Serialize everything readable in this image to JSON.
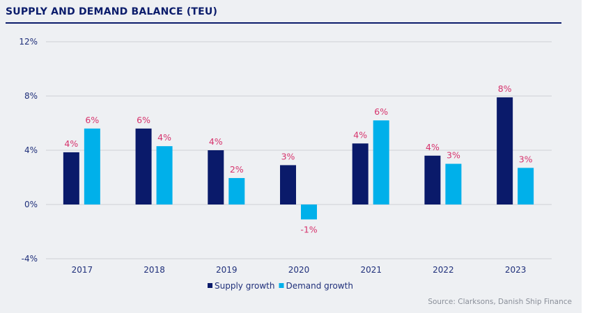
{
  "chart_data": {
    "type": "bar",
    "title": "SUPPLY AND DEMAND BALANCE (TEU)",
    "categories": [
      "2017",
      "2018",
      "2019",
      "2020",
      "2021",
      "2022",
      "2023"
    ],
    "series": [
      {
        "name": "Supply growth",
        "color": "#0a1a6a",
        "values": [
          3.85,
          5.6,
          4.0,
          2.9,
          4.5,
          3.6,
          7.9
        ],
        "labels": [
          "4%",
          "6%",
          "4%",
          "3%",
          "4%",
          "4%",
          "8%"
        ]
      },
      {
        "name": "Demand growth",
        "color": "#00b0ea",
        "values": [
          5.6,
          4.3,
          1.95,
          -1.1,
          6.2,
          3.0,
          2.7
        ],
        "labels": [
          "6%",
          "4%",
          "2%",
          "-1%",
          "6%",
          "3%",
          "3%"
        ]
      }
    ],
    "ylim": [
      -4,
      12
    ],
    "yticks": [
      -4,
      0,
      4,
      8,
      12
    ],
    "ytick_labels": [
      "-4%",
      "0%",
      "4%",
      "8%",
      "12%"
    ],
    "grid": true,
    "legend": "bottom-center",
    "source": "Source: Clarksons, Danish Ship Finance"
  }
}
